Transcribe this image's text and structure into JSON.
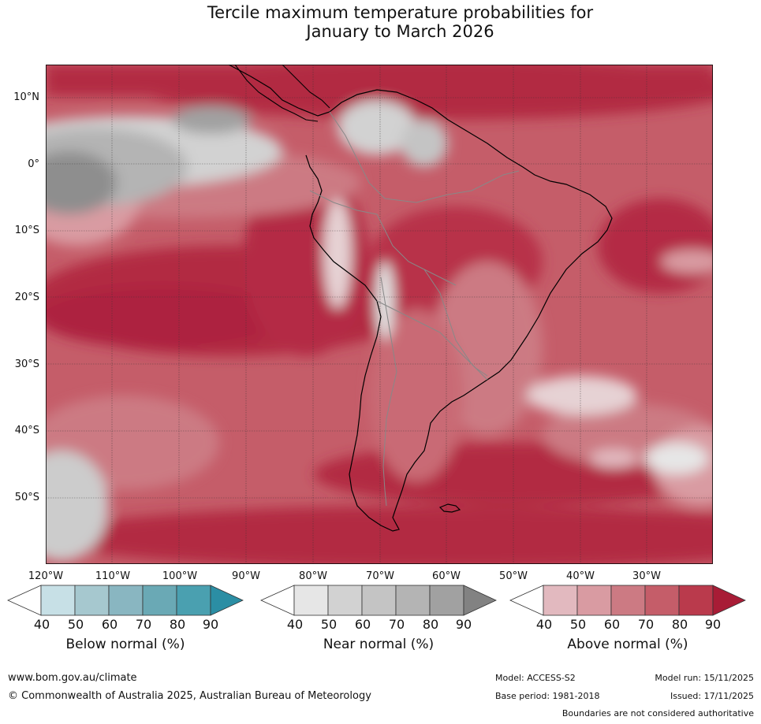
{
  "title": {
    "line1": "Tercile maximum temperature probabilities for",
    "line2": "January to March 2026"
  },
  "map": {
    "latitude_labels": [
      "10°N",
      "0°",
      "10°S",
      "20°S",
      "30°S",
      "40°S",
      "50°S"
    ],
    "longitude_labels": [
      "120°W",
      "110°W",
      "100°W",
      "90°W",
      "80°W",
      "70°W",
      "60°W",
      "50°W",
      "40°W",
      "30°W"
    ]
  },
  "legends": [
    {
      "title": "Below normal (%)",
      "ticks": [
        "40",
        "50",
        "60",
        "70",
        "80",
        "90"
      ],
      "colors": [
        "#ffffff",
        "#c7e0e6",
        "#a6c8cf",
        "#89b6c1",
        "#6aa9b5",
        "#4aa0b0",
        "#2b8ea4"
      ]
    },
    {
      "title": "Near normal (%)",
      "ticks": [
        "40",
        "50",
        "60",
        "70",
        "80",
        "90"
      ],
      "colors": [
        "#ffffff",
        "#e6e6e6",
        "#d2d2d2",
        "#c4c4c4",
        "#b4b4b4",
        "#a1a1a1",
        "#828282"
      ]
    },
    {
      "title": "Above normal (%)",
      "ticks": [
        "40",
        "50",
        "60",
        "70",
        "80",
        "90"
      ],
      "colors": [
        "#ffffff",
        "#e2b9bf",
        "#d99ba2",
        "#cc7a83",
        "#c55d69",
        "#ba3a4c",
        "#a81c36"
      ]
    }
  ],
  "footer": {
    "website": "www.bom.gov.au/climate",
    "copyright": "© Commonwealth of Australia 2025, Australian Bureau of Meteorology",
    "model": "Model: ACCESS-S2",
    "base_period": "Base period: 1981-2018",
    "model_run": "Model run: 15/11/2025",
    "issued": "Issued: 17/11/2025",
    "disclaimer": "Boundaries are not considered authoritative"
  }
}
